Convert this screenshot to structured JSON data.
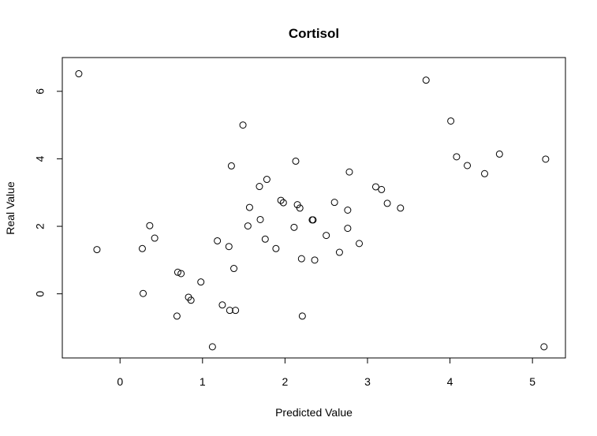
{
  "chart_data": {
    "type": "scatter",
    "title": "Cortisol",
    "xlabel": "Predicted Value",
    "ylabel": "Real Value",
    "xlim": [
      -0.7,
      5.4
    ],
    "ylim": [
      -1.9,
      7.0
    ],
    "xticks": [
      0,
      1,
      2,
      3,
      4,
      5
    ],
    "yticks": [
      0,
      2,
      4,
      6
    ],
    "grid": false,
    "points": [
      [
        -0.5,
        6.52
      ],
      [
        -0.28,
        1.31
      ],
      [
        0.27,
        1.34
      ],
      [
        0.28,
        0.01
      ],
      [
        0.36,
        2.02
      ],
      [
        0.42,
        1.65
      ],
      [
        0.69,
        -0.66
      ],
      [
        0.7,
        0.64
      ],
      [
        0.74,
        0.6
      ],
      [
        0.83,
        -0.1
      ],
      [
        0.86,
        -0.19
      ],
      [
        0.98,
        0.35
      ],
      [
        1.12,
        -1.57
      ],
      [
        1.18,
        1.57
      ],
      [
        1.24,
        -0.33
      ],
      [
        1.32,
        1.4
      ],
      [
        1.33,
        -0.49
      ],
      [
        1.35,
        3.79
      ],
      [
        1.38,
        0.75
      ],
      [
        1.4,
        -0.49
      ],
      [
        1.49,
        5.0
      ],
      [
        1.55,
        2.01
      ],
      [
        1.57,
        2.56
      ],
      [
        1.69,
        3.18
      ],
      [
        1.7,
        2.2
      ],
      [
        1.76,
        1.62
      ],
      [
        1.78,
        3.39
      ],
      [
        1.89,
        1.34
      ],
      [
        1.95,
        2.77
      ],
      [
        1.98,
        2.7
      ],
      [
        2.11,
        1.97
      ],
      [
        2.13,
        3.93
      ],
      [
        2.15,
        2.64
      ],
      [
        2.18,
        2.54
      ],
      [
        2.2,
        1.04
      ],
      [
        2.21,
        -0.66
      ],
      [
        2.33,
        2.19
      ],
      [
        2.34,
        2.19
      ],
      [
        2.36,
        1.0
      ],
      [
        2.5,
        1.73
      ],
      [
        2.6,
        2.71
      ],
      [
        2.66,
        1.23
      ],
      [
        2.76,
        2.48
      ],
      [
        2.76,
        1.94
      ],
      [
        2.78,
        3.61
      ],
      [
        2.9,
        1.49
      ],
      [
        3.1,
        3.17
      ],
      [
        3.17,
        3.09
      ],
      [
        3.24,
        2.68
      ],
      [
        3.4,
        2.54
      ],
      [
        3.71,
        6.33
      ],
      [
        4.01,
        5.12
      ],
      [
        4.08,
        4.06
      ],
      [
        4.21,
        3.8
      ],
      [
        4.42,
        3.56
      ],
      [
        4.6,
        4.14
      ],
      [
        5.14,
        -1.57
      ],
      [
        5.16,
        3.99
      ]
    ]
  }
}
